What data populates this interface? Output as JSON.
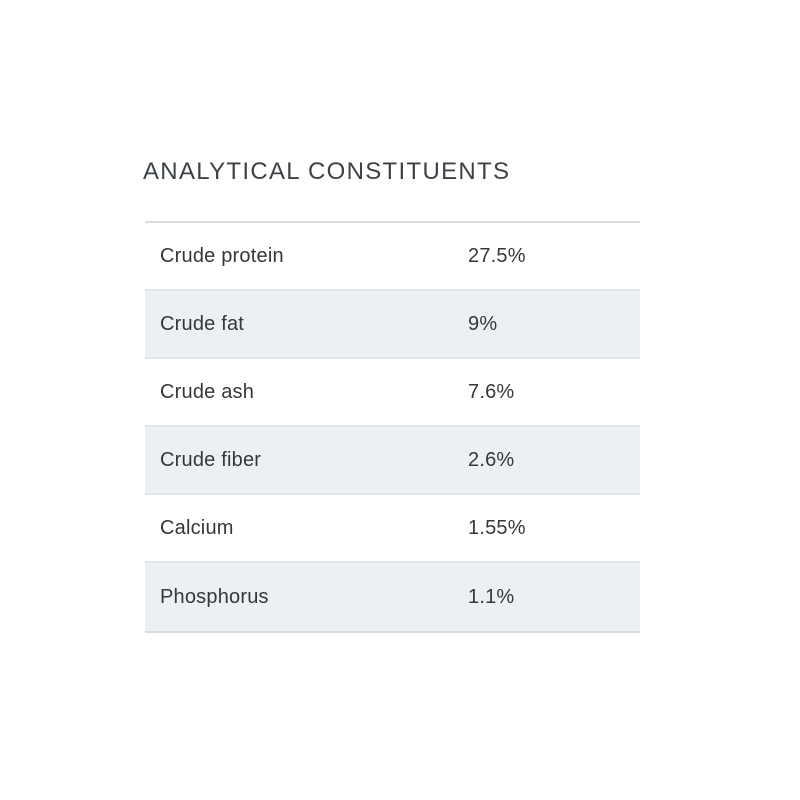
{
  "section": {
    "title": "ANALYTICAL CONSTITUENTS",
    "rows": [
      {
        "label": "Crude protein",
        "value": "27.5%"
      },
      {
        "label": "Crude fat",
        "value": "9%"
      },
      {
        "label": "Crude ash",
        "value": "7.6%"
      },
      {
        "label": "Crude fiber",
        "value": "2.6%"
      },
      {
        "label": "Calcium",
        "value": "1.55%"
      },
      {
        "label": "Phosphorus",
        "value": "1.1%"
      }
    ]
  },
  "colors": {
    "title_text": "#3d4248",
    "row_text": "#34383c",
    "stripe_bg": "#edf0f2",
    "divider": "#e1e4e6",
    "outer_border": "#d9dcde"
  }
}
